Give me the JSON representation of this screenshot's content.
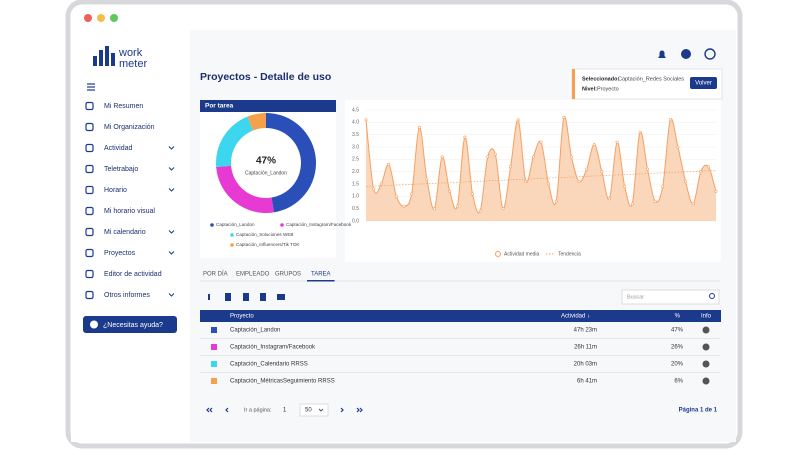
{
  "brand": {
    "line1": "work",
    "line2": "meter"
  },
  "sidebar": {
    "items": [
      "Mi Resumen",
      "Mi Organización",
      "Actividad",
      "Teletrabajo",
      "Horario",
      "Mi horario visual",
      "Mi calendario",
      "Proyectos",
      "Editor de actividad",
      "Otros informes"
    ],
    "expandable": [
      false,
      false,
      true,
      true,
      true,
      false,
      true,
      true,
      false,
      true
    ],
    "help": "¿Necesitas ayuda?"
  },
  "page": {
    "title": "Proyectos - Detalle de uso"
  },
  "selection": {
    "selected_label": "Seleccionado:",
    "selected_value": "Captación_Redes Sociales",
    "level_label": "Nivel:",
    "level_value": "Proyecto",
    "button": "Volver"
  },
  "chart_data": [
    {
      "type": "pie",
      "title": "Por tarea",
      "names": [
        "Captación_Landon",
        "Captación_Instagram/Facebook",
        "Captación_Soluciones WEB",
        "Captación_Influencers/Tik TOK"
      ],
      "colors": [
        "#2b4fb8",
        "#e63ad3",
        "#3cd6ef",
        "#f5a04a"
      ],
      "values": [
        47,
        26,
        20,
        6
      ],
      "value_labels": [
        "47%",
        "26%",
        "20%",
        "6%"
      ]
    },
    {
      "type": "line",
      "ylim": [
        0,
        4.5
      ],
      "yticks": [
        {
          "value": 0,
          "label": "0.0"
        },
        {
          "value": 0.5,
          "label": "0.5"
        },
        {
          "value": 1,
          "label": "1.0"
        },
        {
          "value": 1.5,
          "label": "1.5"
        },
        {
          "value": 2,
          "label": "2.0"
        },
        {
          "value": 2.5,
          "label": "2.5"
        },
        {
          "value": 3,
          "label": "3.0"
        },
        {
          "value": 3.5,
          "label": "3.5"
        },
        {
          "value": 4,
          "label": "4.0"
        },
        {
          "value": 4.5,
          "label": "4.5"
        }
      ],
      "series": [
        {
          "name": "Actividad media",
          "color": "#f5a062",
          "values": [
            4.1,
            1.3,
            1.5,
            2.3,
            1.0,
            0.6,
            1.1,
            3.8,
            1.7,
            0.5,
            2.6,
            1.2,
            0.6,
            3.4,
            1.1,
            0.4,
            2.6,
            2.7,
            0.5,
            2.2,
            4.1,
            1.6,
            2.6,
            3.2,
            1.5,
            0.8,
            4.2,
            2.6,
            1.6,
            2.1,
            3.1,
            2.0,
            0.9,
            3.2,
            1.4,
            0.7,
            3.6,
            2.1,
            0.8,
            1.4,
            4.1,
            3.0,
            1.6,
            0.7,
            2.0,
            2.2,
            1.2
          ]
        },
        {
          "name": "Tendencia",
          "color": "#f5a062",
          "x": [
            0,
            46
          ],
          "values": [
            1.4,
            2.05
          ]
        }
      ]
    }
  ],
  "tabs": {
    "items": [
      "POR DÍA",
      "EMPLEADO",
      "GRUPOS",
      "TAREA"
    ],
    "active": 3
  },
  "search": {
    "placeholder": "Buscar"
  },
  "table": {
    "header": [
      "Proyecto",
      "Actividad ↓",
      "%",
      "Info"
    ],
    "rows": [
      [
        "Captación_Landon",
        "47h 23m",
        "47%"
      ],
      [
        "Captación_Instagram/Facebook",
        "26h 11m",
        "26%"
      ],
      [
        "Captación_Calendario RRSS",
        "20h 03m",
        "20%"
      ],
      [
        "Captación_MétricasSeguimiento RRSS",
        "6h 41m",
        "6%"
      ]
    ],
    "colors": [
      "#2b4fb8",
      "#e63ad3",
      "#3cd6ef",
      "#f5a04a"
    ]
  },
  "pagination": {
    "goto": "Ir a página:",
    "page": "1",
    "size": "50",
    "summary": "Página 1 de 1"
  }
}
